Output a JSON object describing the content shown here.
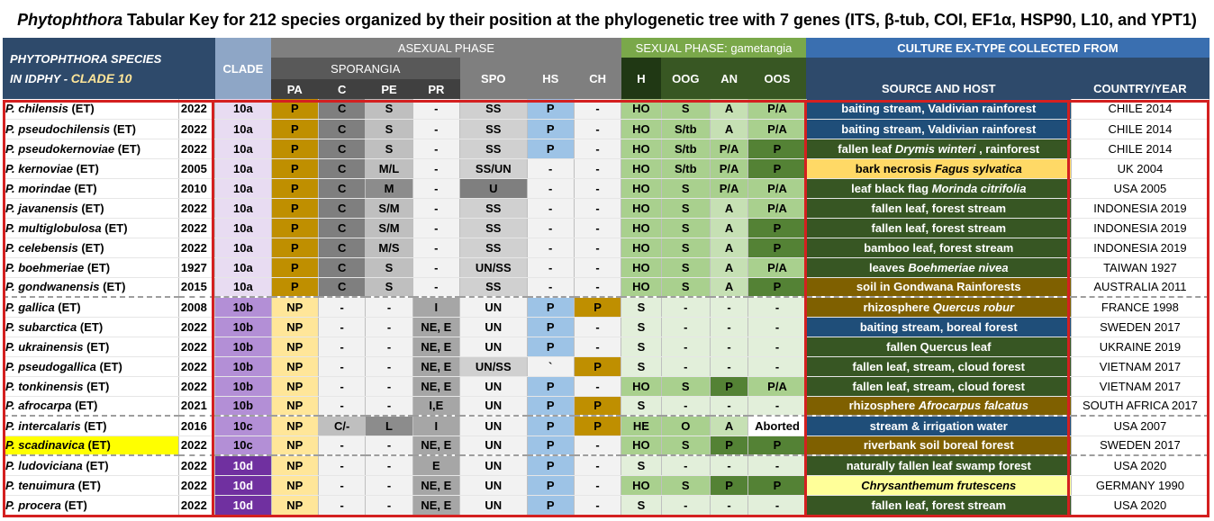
{
  "title": {
    "genus": "Phytophthora",
    "rest": " Tabular Key for 212 species organized by their position at the phylogenetic tree with 7 genes (ITS, β-tub, COI, EF1α, HSP90, L10, and YPT1)"
  },
  "header": {
    "species_line1": "PHYTOPHTHORA  SPECIES",
    "species_line2a": "IN ",
    "species_line2b": "IDPHY",
    "species_line2c": " - ",
    "species_line2d": "CLADE 10",
    "clade": "CLADE",
    "asexual": "ASEXUAL PHASE",
    "sporangia": "SPORANGIA",
    "sexual": "SEXUAL PHASE: gametangia",
    "culture": "CULTURE EX-TYPE COLLECTED FROM",
    "cols": {
      "pa": "PA",
      "c": "C",
      "pe": "PE",
      "pr": "PR",
      "spo": "SPO",
      "hs": "HS",
      "ch": "CH",
      "h": "H",
      "oog": "OOG",
      "an": "AN",
      "oos": "OOS",
      "source": "SOURCE AND HOST",
      "country": "COUNTRY/YEAR"
    }
  },
  "colors": {
    "clade_a": "#e8dcf2",
    "clade_b": "#b38fd6",
    "clade_c": "#b38fd6",
    "clade_d": "#7030a0",
    "pa_p": "#bf8f00",
    "pa_np": "#ffe699",
    "src_dark_green": "#375623",
    "src_blue": "#1f4e79",
    "src_yellow": "#ffd966",
    "src_brown": "#7f6000",
    "src_light_yellow": "#ffff99"
  },
  "rows": [
    {
      "sp": "P. chilensis",
      "et": " (ET)",
      "yr": "2022",
      "clade": "10a",
      "pa": "P",
      "c": "C",
      "pe": "S",
      "pr": "-",
      "spo": "SS",
      "hs": "P",
      "ch": "-",
      "h": "HO",
      "oog": "S",
      "an": "A",
      "oos": "P/A",
      "src": [
        {
          "t": "baiting stream, Valdivian rainforest"
        }
      ],
      "srcbg": "#1f4e79",
      "country": "CHILE 2014"
    },
    {
      "sp": "P. pseudochilensis",
      "et": " (ET)",
      "yr": "2022",
      "clade": "10a",
      "pa": "P",
      "c": "C",
      "pe": "S",
      "pr": "-",
      "spo": "SS",
      "hs": "P",
      "ch": "-",
      "h": "HO",
      "oog": "S/tb",
      "an": "A",
      "oos": "P/A",
      "src": [
        {
          "t": "baiting stream, Valdivian rainforest"
        }
      ],
      "srcbg": "#1f4e79",
      "country": "CHILE 2014"
    },
    {
      "sp": "P. pseudokernoviae",
      "et": " (ET)",
      "yr": "2022",
      "clade": "10a",
      "pa": "P",
      "c": "C",
      "pe": "S",
      "pr": "-",
      "spo": "SS",
      "hs": "P",
      "ch": "-",
      "h": "HO",
      "oog": "S/tb",
      "an": "P/A",
      "oos": "P",
      "src": [
        {
          "t": "fallen leaf "
        },
        {
          "t": "Drymis winteri",
          "i": true
        },
        {
          "t": " , rainforest"
        }
      ],
      "srcbg": "#375623",
      "country": "CHILE 2014"
    },
    {
      "sp": "P. kernoviae",
      "et": " (ET)",
      "yr": "2005",
      "clade": "10a",
      "pa": "P",
      "c": "C",
      "pe": "M/L",
      "pr": "-",
      "spo": "SS/UN",
      "hs": "-",
      "ch": "-",
      "h": "HO",
      "oog": "S/tb",
      "an": "P/A",
      "oos": "P",
      "src": [
        {
          "t": "bark necrosis "
        },
        {
          "t": "Fagus sylvatica",
          "i": true
        }
      ],
      "srcbg": "#ffd966",
      "srcdark": true,
      "country": "UK 2004"
    },
    {
      "sp": "P. morindae",
      "et": " (ET)",
      "yr": "2010",
      "clade": "10a",
      "pa": "P",
      "c": "C",
      "pe": "M",
      "pr": "-",
      "spo": "U",
      "hs": "-",
      "ch": "-",
      "h": "HO",
      "oog": "S",
      "an": "P/A",
      "oos": "P/A",
      "src": [
        {
          "t": "leaf black flag "
        },
        {
          "t": "Morinda citrifolia",
          "i": true
        }
      ],
      "srcbg": "#375623",
      "country": "USA 2005"
    },
    {
      "sp": "P. javanensis",
      "et": " (ET)",
      "yr": "2022",
      "clade": "10a",
      "pa": "P",
      "c": "C",
      "pe": "S/M",
      "pr": "-",
      "spo": "SS",
      "hs": "-",
      "ch": "-",
      "h": "HO",
      "oog": "S",
      "an": "A",
      "oos": "P/A",
      "src": [
        {
          "t": "fallen leaf, forest stream"
        }
      ],
      "srcbg": "#375623",
      "country": "INDONESIA 2019"
    },
    {
      "sp": "P. multiglobulosa",
      "et": " (ET)",
      "yr": "2022",
      "clade": "10a",
      "pa": "P",
      "c": "C",
      "pe": "S/M",
      "pr": "-",
      "spo": "SS",
      "hs": "-",
      "ch": "-",
      "h": "HO",
      "oog": "S",
      "an": "A",
      "oos": "P",
      "src": [
        {
          "t": "fallen leaf, forest stream"
        }
      ],
      "srcbg": "#375623",
      "country": "INDONESIA 2019"
    },
    {
      "sp": "P. celebensis",
      "et": " (ET)",
      "yr": "2022",
      "clade": "10a",
      "pa": "P",
      "c": "C",
      "pe": "M/S",
      "pr": "-",
      "spo": "SS",
      "hs": "-",
      "ch": "-",
      "h": "HO",
      "oog": "S",
      "an": "A",
      "oos": "P",
      "src": [
        {
          "t": "bamboo leaf, forest stream"
        }
      ],
      "srcbg": "#375623",
      "country": "INDONESIA 2019"
    },
    {
      "sp": "P. boehmeriae",
      "et": " (ET)",
      "yr": "1927",
      "clade": "10a",
      "pa": "P",
      "c": "C",
      "pe": "S",
      "pr": "-",
      "spo": "UN/SS",
      "hs": "-",
      "ch": "-",
      "h": "HO",
      "oog": "S",
      "an": "A",
      "oos": "P/A",
      "src": [
        {
          "t": "leaves "
        },
        {
          "t": "Boehmeriae nivea",
          "i": true
        }
      ],
      "srcbg": "#375623",
      "country": "TAIWAN 1927"
    },
    {
      "sp": "P. gondwanensis",
      "et": " (ET)",
      "yr": "2015",
      "clade": "10a",
      "pa": "P",
      "c": "C",
      "pe": "S",
      "pr": "-",
      "spo": "SS",
      "hs": "-",
      "ch": "-",
      "h": "HO",
      "oog": "S",
      "an": "A",
      "oos": "P",
      "src": [
        {
          "t": "soil in Gondwana Rainforests"
        }
      ],
      "srcbg": "#7f6000",
      "country": "AUSTRALIA 2011",
      "sep": true
    },
    {
      "sp": "P. gallica",
      "et": " (ET)",
      "yr": "2008",
      "clade": "10b",
      "pa": "NP",
      "c": "-",
      "pe": "-",
      "pr": "I",
      "spo": "UN",
      "hs": "P",
      "ch": "P",
      "h": "S",
      "oog": "-",
      "an": "-",
      "oos": "-",
      "src": [
        {
          "t": "rhizosphere "
        },
        {
          "t": "Quercus robur",
          "i": true
        }
      ],
      "srcbg": "#7f6000",
      "country": "FRANCE 1998"
    },
    {
      "sp": "P. subarctica",
      "et": " (ET)",
      "yr": "2022",
      "clade": "10b",
      "pa": "NP",
      "c": "-",
      "pe": "-",
      "pr": "NE, E",
      "spo": "UN",
      "hs": "P",
      "ch": "-",
      "h": "S",
      "oog": "-",
      "an": "-",
      "oos": "-",
      "src": [
        {
          "t": "baiting stream, boreal forest"
        }
      ],
      "srcbg": "#1f4e79",
      "country": "SWEDEN 2017"
    },
    {
      "sp": "P. ukrainensis",
      "et": " (ET)",
      "yr": "2022",
      "clade": "10b",
      "pa": "NP",
      "c": "-",
      "pe": "-",
      "pr": "NE, E",
      "spo": "UN",
      "hs": "P",
      "ch": "-",
      "h": "S",
      "oog": "-",
      "an": "-",
      "oos": "-",
      "src": [
        {
          "t": "fallen Quercus leaf"
        }
      ],
      "srcbg": "#375623",
      "country": "UKRAINE 2019"
    },
    {
      "sp": "P. pseudogallica",
      "et": " (ET)",
      "yr": "2022",
      "clade": "10b",
      "pa": "NP",
      "c": "-",
      "pe": "-",
      "pr": "NE, E",
      "spo": "UN/SS",
      "hs": "`",
      "ch": "P",
      "h": "S",
      "oog": "-",
      "an": "-",
      "oos": "-",
      "src": [
        {
          "t": "fallen leaf, stream, cloud forest"
        }
      ],
      "srcbg": "#375623",
      "country": "VIETNAM 2017"
    },
    {
      "sp": "P. tonkinensis",
      "et": " (ET)",
      "yr": "2022",
      "clade": "10b",
      "pa": "NP",
      "c": "-",
      "pe": "-",
      "pr": "NE, E",
      "spo": "UN",
      "hs": "P",
      "ch": "-",
      "h": "HO",
      "oog": "S",
      "an": "P",
      "oos": "P/A",
      "src": [
        {
          "t": "fallen leaf, stream, cloud forest"
        }
      ],
      "srcbg": "#375623",
      "country": "VIETNAM 2017"
    },
    {
      "sp": "P. afrocarpa",
      "et": " (ET)",
      "yr": "2021",
      "clade": "10b",
      "pa": "NP",
      "c": "-",
      "pe": "-",
      "pr": "I,E",
      "spo": "UN",
      "hs": "P",
      "ch": "P",
      "h": "S",
      "oog": "-",
      "an": "-",
      "oos": "-",
      "src": [
        {
          "t": "rhizosphere "
        },
        {
          "t": "Afrocarpus falcatus",
          "i": true
        }
      ],
      "srcbg": "#7f6000",
      "country": "SOUTH AFRICA 2017",
      "sep": true
    },
    {
      "sp": "P. intercalaris",
      "et": " (ET)",
      "yr": "2016",
      "clade": "10c",
      "pa": "NP",
      "c": "C/-",
      "pe": "L",
      "pr": "I",
      "spo": "UN",
      "hs": "P",
      "ch": "P",
      "h": "HE",
      "oog": "O",
      "an": "A",
      "oos": "Aborted",
      "src": [
        {
          "t": "stream & irrigation water"
        }
      ],
      "srcbg": "#1f4e79",
      "country": "USA 2007"
    },
    {
      "sp": "P. scadinavica",
      "et": " (ET)",
      "yr": "2022",
      "clade": "10c",
      "pa": "NP",
      "c": "-",
      "pe": "-",
      "pr": "NE, E",
      "spo": "UN",
      "hs": "P",
      "ch": "-",
      "h": "HO",
      "oog": "S",
      "an": "P",
      "oos": "P",
      "src": [
        {
          "t": "riverbank soil boreal forest"
        }
      ],
      "srcbg": "#7f6000",
      "country": "SWEDEN 2017",
      "hl": true,
      "sep": true
    },
    {
      "sp": "P. ludoviciana",
      "et": " (ET)",
      "yr": "2022",
      "clade": "10d",
      "pa": "NP",
      "c": "-",
      "pe": "-",
      "pr": "E",
      "spo": "UN",
      "hs": "P",
      "ch": "-",
      "h": "S",
      "oog": "-",
      "an": "-",
      "oos": "-",
      "src": [
        {
          "t": "naturally fallen leaf swamp forest"
        }
      ],
      "srcbg": "#375623",
      "country": "USA 2020"
    },
    {
      "sp": "P. tenuimura",
      "et": " (ET)",
      "yr": "2022",
      "clade": "10d",
      "pa": "NP",
      "c": "-",
      "pe": "-",
      "pr": "NE, E",
      "spo": "UN",
      "hs": "P",
      "ch": "-",
      "h": "HO",
      "oog": "S",
      "an": "P",
      "oos": "P",
      "src": [
        {
          "t": "Chrysanthemum frutescens",
          "i": true
        }
      ],
      "srcbg": "#ffff99",
      "srcdark": true,
      "country": "GERMANY 1990"
    },
    {
      "sp": "P. procera",
      "et": " (ET)",
      "yr": "2022",
      "clade": "10d",
      "pa": "NP",
      "c": "-",
      "pe": "-",
      "pr": "NE, E",
      "spo": "UN",
      "hs": "P",
      "ch": "-",
      "h": "S",
      "oog": "-",
      "an": "-",
      "oos": "-",
      "src": [
        {
          "t": "fallen leaf, forest stream"
        }
      ],
      "srcbg": "#375623",
      "country": "USA 2020"
    }
  ]
}
